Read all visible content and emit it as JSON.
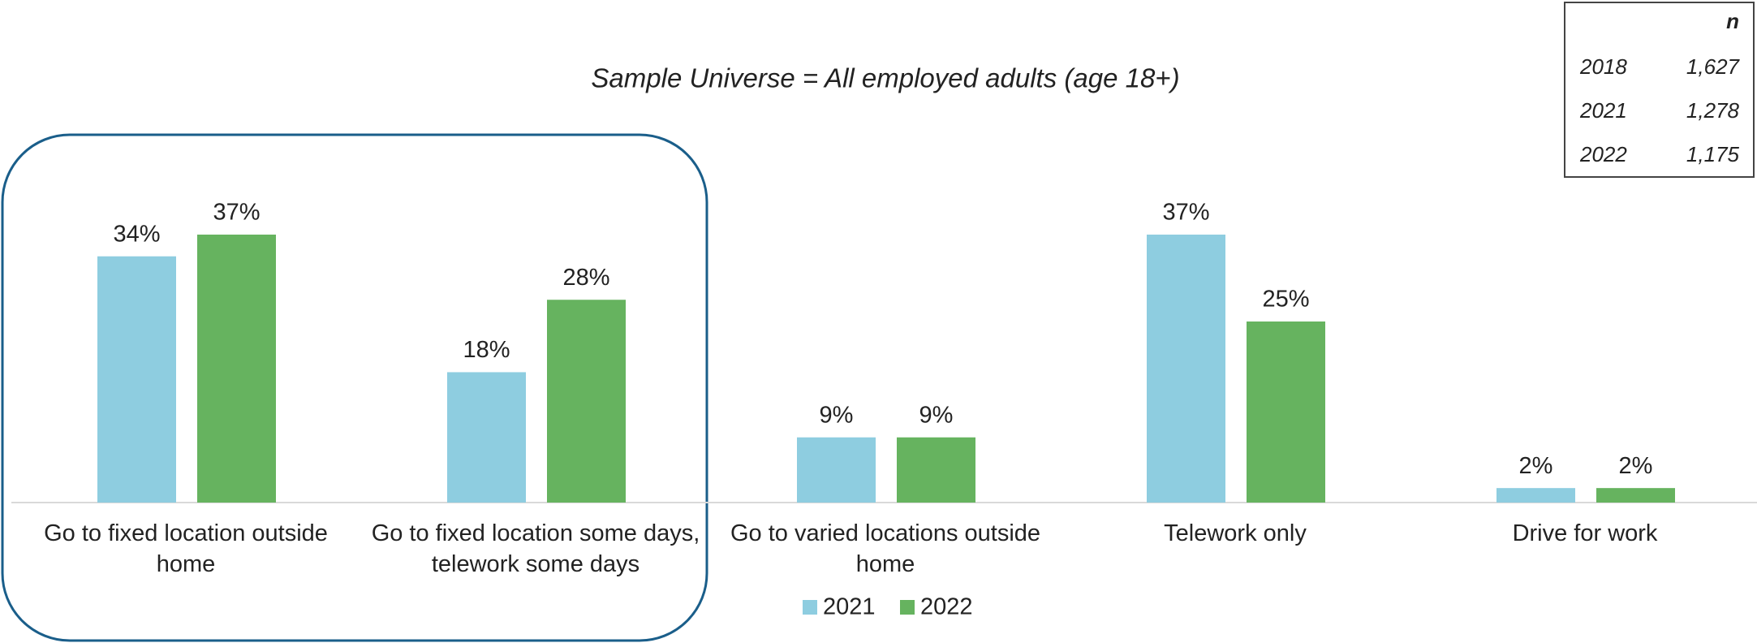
{
  "chart_data": {
    "type": "bar",
    "subtitle": "Sample Universe = All employed adults (age 18+)",
    "categories": [
      "Go to fixed location outside home",
      "Go to fixed location some days, telework some days",
      "Go to varied locations outside home",
      "Telework only",
      "Drive for work"
    ],
    "series": [
      {
        "name": "2021",
        "color": "#8ecde0",
        "values": [
          34,
          18,
          9,
          37,
          2
        ],
        "value_labels": [
          "34%",
          "18%",
          "9%",
          "37%",
          "2%"
        ]
      },
      {
        "name": "2022",
        "color": "#66b35f",
        "values": [
          37,
          28,
          9,
          25,
          2
        ],
        "value_labels": [
          "37%",
          "28%",
          "9%",
          "25%",
          "2%"
        ]
      }
    ]
  },
  "n_table": {
    "header": "n",
    "rows": [
      [
        "2018",
        "1,627"
      ],
      [
        "2021",
        "1,278"
      ],
      [
        "2022",
        "1,175"
      ]
    ]
  }
}
